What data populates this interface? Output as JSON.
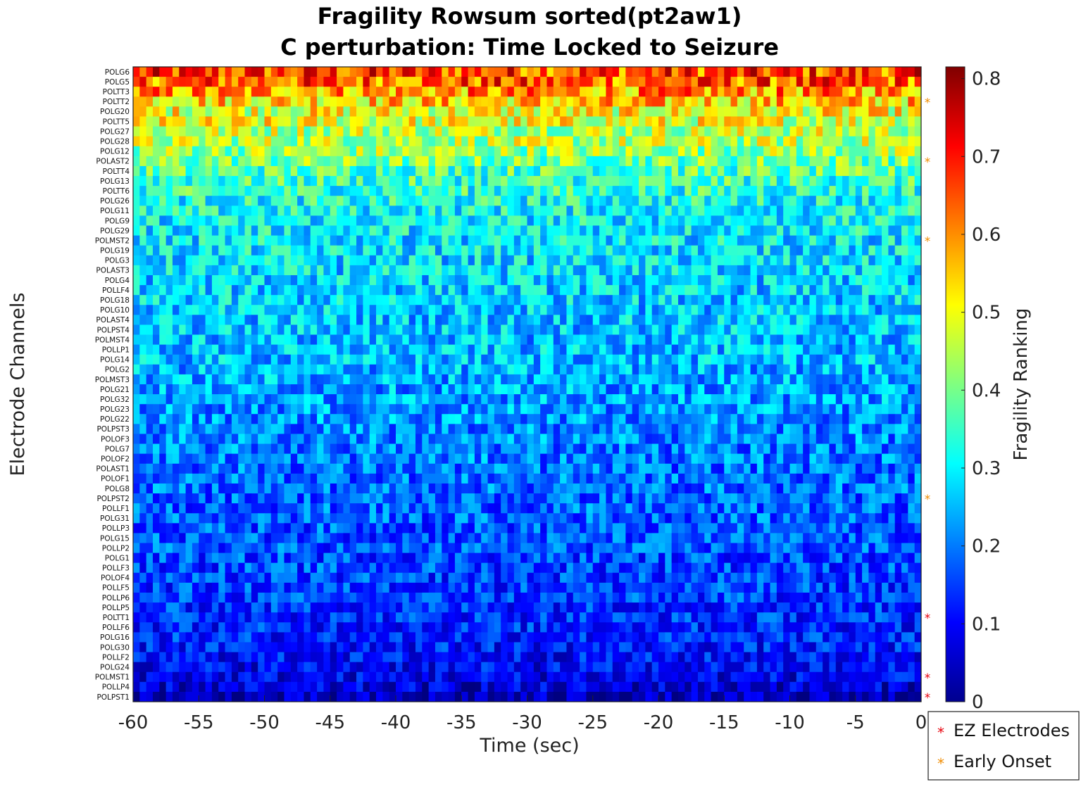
{
  "chart_data": {
    "type": "heatmap",
    "title": "Fragility Rowsum sorted(pt2aw1)",
    "subtitle": "C perturbation:  Time Locked to Seizure",
    "xlabel": "Time (sec)",
    "ylabel": "Electrode Channels",
    "colorbar_label": "Fragility Ranking",
    "colormap": "jet",
    "xlim": [
      -60,
      0
    ],
    "clim": [
      0,
      0.815
    ],
    "x_ticks": [
      "-60",
      "-55",
      "-50",
      "-45",
      "-40",
      "-35",
      "-30",
      "-25",
      "-20",
      "-15",
      "-10",
      "-5",
      "0"
    ],
    "colorbar_ticks": [
      "0",
      "0.1",
      "0.2",
      "0.3",
      "0.4",
      "0.5",
      "0.6",
      "0.7",
      "0.8"
    ],
    "n_time_bins": 120,
    "channels": [
      "POLG6",
      "POLG5",
      "POLTT3",
      "POLTT2",
      "POLG20",
      "POLTT5",
      "POLG27",
      "POLG28",
      "POLG12",
      "POLAST2",
      "POLTT4",
      "POLG13",
      "POLTT6",
      "POLG26",
      "POLG11",
      "POLG9",
      "POLG29",
      "POLMST2",
      "POLG19",
      "POLG3",
      "POLAST3",
      "POLG4",
      "POLLF4",
      "POLG18",
      "POLG10",
      "POLAST4",
      "POLPST4",
      "POLMST4",
      "POLLP1",
      "POLG14",
      "POLG2",
      "POLMST3",
      "POLG21",
      "POLG32",
      "POLG23",
      "POLG22",
      "POLPST3",
      "POLOF3",
      "POLG7",
      "POLOF2",
      "POLAST1",
      "POLOF1",
      "POLG8",
      "POLPST2",
      "POLLF1",
      "POLG31",
      "POLLP3",
      "POLG15",
      "POLLP2",
      "POLG1",
      "POLLF3",
      "POLOF4",
      "POLLF5",
      "POLLP6",
      "POLLP5",
      "POLTT1",
      "POLLF6",
      "POLG16",
      "POLG30",
      "POLLF2",
      "POLG24",
      "POLMST1",
      "POLLP4",
      "POLPST1"
    ],
    "channel_mean_fragility": [
      0.66,
      0.64,
      0.59,
      0.55,
      0.5,
      0.49,
      0.46,
      0.45,
      0.43,
      0.4,
      0.37,
      0.35,
      0.34,
      0.32,
      0.31,
      0.3,
      0.3,
      0.29,
      0.29,
      0.28,
      0.28,
      0.27,
      0.27,
      0.27,
      0.26,
      0.26,
      0.26,
      0.25,
      0.25,
      0.25,
      0.24,
      0.24,
      0.23,
      0.23,
      0.22,
      0.22,
      0.21,
      0.21,
      0.2,
      0.2,
      0.19,
      0.19,
      0.19,
      0.18,
      0.18,
      0.18,
      0.17,
      0.17,
      0.17,
      0.16,
      0.16,
      0.15,
      0.15,
      0.15,
      0.14,
      0.14,
      0.13,
      0.13,
      0.12,
      0.11,
      0.1,
      0.09,
      0.07,
      0.04
    ],
    "ez_electrodes": [
      "POLTT1",
      "POLMST1",
      "POLPST1"
    ],
    "early_onset_electrodes": [
      "POLTT2",
      "POLAST2",
      "POLMST2",
      "POLPST2"
    ],
    "legend": {
      "placement": "bottom-right",
      "entries": [
        {
          "label": "EZ Electrodes",
          "marker": "*",
          "color": "#e8000b"
        },
        {
          "label": "Early Onset",
          "marker": "*",
          "color": "#f08c00"
        }
      ]
    }
  },
  "colors": {
    "ez": "#e8000b",
    "early_onset": "#f08c00",
    "label_default": "#111111"
  }
}
